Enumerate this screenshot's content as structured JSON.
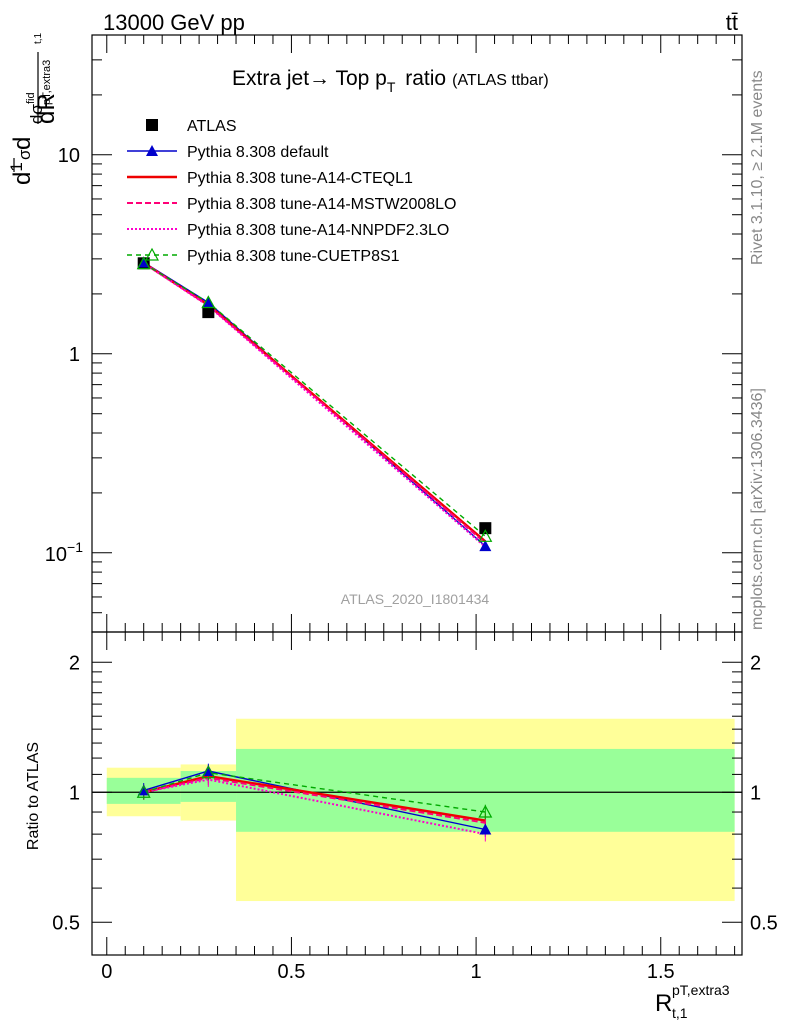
{
  "header": {
    "energy_label": "13000 GeV pp",
    "process_label": "tt̄"
  },
  "side_labels": {
    "rivet": "Rivet 3.1.10, ≥ 2.1M events",
    "mcplots": "mcplots.cern.ch [arXiv:1306.3436]"
  },
  "watermark": "ATLAS_2020_I1801434",
  "ratio_ylabel": "Ratio to ATLAS",
  "colors": {
    "ATLAS": "#000000",
    "default": "#0000cc",
    "cteql1": "#ee0000",
    "mstw": "#ff0077",
    "nnpdf": "#ff00cc",
    "cuetp8s1": "#00aa00",
    "band_green": "#99ff99",
    "band_yellow": "#ffff99"
  },
  "chart_data": {
    "type": "line",
    "title": "Extra jet→ Top p_T ratio",
    "title_note": "(ATLAS ttbar)",
    "xlabel": "R_{t,1}^{pT,extra3}",
    "ylabel": "d(1/σ dσ^{fid}_{pT,extra3})/dR_{t,1}",
    "x_range": [
      -0.04,
      1.72
    ],
    "y_range": [
      0.04,
      40
    ],
    "y_scale": "log",
    "x_ticks": [
      "0",
      "0.5",
      "1",
      "1.5"
    ],
    "y_ticks": [
      "10^{-1}",
      "1",
      "10"
    ],
    "ratio_y_range": [
      0.42,
      2.35
    ],
    "ratio_ticks": [
      "0.5",
      "1",
      "2"
    ],
    "legend_position": "top-left",
    "x_bins": [
      [
        0,
        0.2
      ],
      [
        0.2,
        0.35
      ],
      [
        0.35,
        1.7
      ]
    ],
    "x": [
      0.1,
      0.275,
      1.025
    ],
    "series": [
      {
        "name": "ATLAS",
        "key": "ATLAS",
        "values": [
          2.85,
          1.62,
          0.133
        ],
        "ratio": [
          1.0,
          1.0,
          1.0
        ]
      },
      {
        "name": "Pythia 8.308 default",
        "key": "default",
        "values": [
          2.88,
          1.81,
          0.108
        ],
        "ratio": [
          1.01,
          1.12,
          0.82
        ]
      },
      {
        "name": "Pythia 8.308 tune-A14-CTEQL1",
        "key": "cteql1",
        "values": [
          2.86,
          1.76,
          0.114
        ],
        "ratio": [
          1.0,
          1.09,
          0.86
        ]
      },
      {
        "name": "Pythia 8.308 tune-A14-MSTW2008LO",
        "key": "mstw",
        "values": [
          2.86,
          1.75,
          0.112
        ],
        "ratio": [
          1.0,
          1.08,
          0.85
        ]
      },
      {
        "name": "Pythia 8.308 tune-A14-NNPDF2.3LO",
        "key": "nnpdf",
        "values": [
          2.85,
          1.74,
          0.107
        ],
        "ratio": [
          1.0,
          1.07,
          0.8
        ]
      },
      {
        "name": "Pythia 8.308 tune-CUETP8S1",
        "key": "cuetp8s1",
        "values": [
          2.84,
          1.81,
          0.121
        ],
        "ratio": [
          1.0,
          1.11,
          0.9
        ]
      }
    ],
    "ratio_band_green": [
      [
        0.94,
        1.08
      ],
      [
        0.95,
        1.12
      ],
      [
        0.81,
        1.26
      ]
    ],
    "ratio_band_yellow": [
      [
        0.88,
        1.14
      ],
      [
        0.86,
        1.16
      ],
      [
        0.56,
        1.48
      ]
    ]
  }
}
